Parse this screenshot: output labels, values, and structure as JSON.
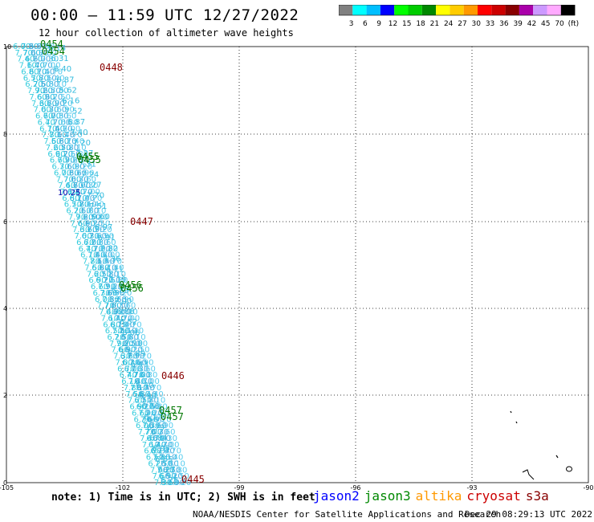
{
  "header": {
    "title": "00:00 – 11:59 UTC 12/27/2022",
    "subtitle": "12 hour collection of altimeter wave heights"
  },
  "colorbar": {
    "colors": [
      "#808080",
      "#00ffff",
      "#00bfff",
      "#0000ff",
      "#00ff00",
      "#00cc00",
      "#008800",
      "#ffff00",
      "#ffcc00",
      "#ff9900",
      "#ff0000",
      "#cc0000",
      "#880000",
      "#aa00aa",
      "#cc99ff",
      "#ffaaff",
      "#000000"
    ],
    "labels": [
      "3",
      "6",
      "9",
      "12",
      "15",
      "18",
      "21",
      "24",
      "27",
      "30",
      "33",
      "36",
      "39",
      "42",
      "45",
      "70",
      "(ft)"
    ]
  },
  "axes": {
    "x_ticks": [
      "-105",
      "-102",
      "-99",
      "-96",
      "-93",
      "-90"
    ],
    "y_ticks": [
      "0",
      "2",
      "4",
      "6",
      "8",
      "10"
    ]
  },
  "tracks": {
    "readings": [
      "6.14",
      "6.31",
      "6.40",
      "6.87",
      "5.62",
      "6.16",
      "7.52",
      "6.87",
      "7.40",
      "7.20",
      "7.27",
      "7.31",
      "7.24",
      "7.27",
      "7.70",
      "7.51",
      "9.60",
      "6.97",
      "6.91",
      "7.82",
      "7.36",
      "6.71",
      "7.19",
      "6.89",
      "7.00",
      "6.88",
      "6.52",
      "6.06",
      "7.10",
      "6.89",
      "6.43",
      "7.01",
      "6.40",
      "6.90",
      "6.76",
      "6.17",
      "6.79",
      "6.84",
      "6.95",
      "6.65",
      "6.27",
      "6.25"
    ],
    "highlight_reading": "10.25",
    "time_labels": [
      {
        "text": "0454",
        "color": "#007700"
      },
      {
        "text": "0454",
        "color": "#007700"
      },
      {
        "text": "0448",
        "color": "#880000"
      },
      {
        "text": "0455",
        "color": "#007700"
      },
      {
        "text": "0455",
        "color": "#007700"
      },
      {
        "text": "0447",
        "color": "#880000"
      },
      {
        "text": "0456",
        "color": "#007700"
      },
      {
        "text": "0456",
        "color": "#007700"
      },
      {
        "text": "0446",
        "color": "#880000"
      },
      {
        "text": "0457",
        "color": "#007700"
      },
      {
        "text": "0457",
        "color": "#007700"
      },
      {
        "text": "0445",
        "color": "#880000"
      }
    ]
  },
  "footer": {
    "note": "note: 1) Time is in UTC; 2) SWH is in feet",
    "legend": [
      {
        "label": "jason2",
        "color": "#0000ff"
      },
      {
        "label": "jason3",
        "color": "#008800"
      },
      {
        "label": "altika",
        "color": "#ff9900"
      },
      {
        "label": "cryosat",
        "color": "#cc0000"
      },
      {
        "label": "s3a",
        "color": "#880000"
      }
    ],
    "credit": "NOAA/NESDIS Center for Satellite Applications and Research",
    "date": "Dec 29 08:29:13 UTC 2022"
  }
}
